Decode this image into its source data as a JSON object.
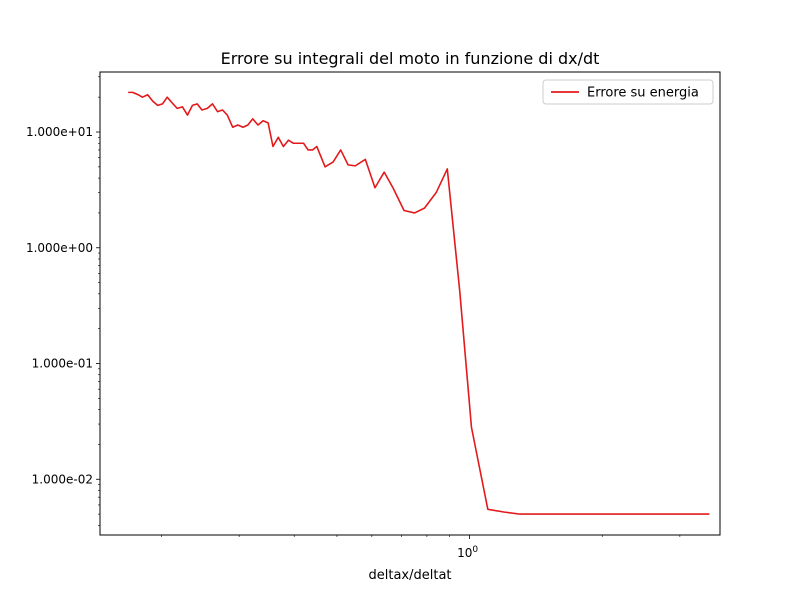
{
  "chart_data": {
    "type": "line",
    "title": "Errore su integrali del moto in funzione di dx/dt",
    "xlabel": "deltax/deltat",
    "ylabel": "",
    "xscale": "log",
    "yscale": "log",
    "xlim": [
      0.145,
      3.7
    ],
    "ylim": [
      0.0033,
      33
    ],
    "grid": false,
    "legend": {
      "location": "top-right",
      "entries": [
        "Errore su energia"
      ]
    },
    "xticks": [
      {
        "value": 1,
        "base": "10",
        "exp": "0",
        "label": "10^0"
      }
    ],
    "yticks": [
      {
        "value": 0.01,
        "label": "1.000e-02"
      },
      {
        "value": 0.1,
        "label": "1.000e-01"
      },
      {
        "value": 1,
        "label": "1.000e+00"
      },
      {
        "value": 10,
        "label": "1.000e+01"
      }
    ],
    "series": [
      {
        "name": "Errore su energia",
        "color": "#e31a1c",
        "x": [
          0.168,
          0.172,
          0.177,
          0.181,
          0.186,
          0.191,
          0.196,
          0.201,
          0.206,
          0.211,
          0.217,
          0.223,
          0.229,
          0.235,
          0.241,
          0.247,
          0.254,
          0.261,
          0.268,
          0.275,
          0.282,
          0.29,
          0.298,
          0.306,
          0.314,
          0.322,
          0.331,
          0.34,
          0.349,
          0.358,
          0.368,
          0.378,
          0.388,
          0.398,
          0.409,
          0.42,
          0.43,
          0.44,
          0.45,
          0.47,
          0.49,
          0.51,
          0.53,
          0.55,
          0.58,
          0.61,
          0.64,
          0.67,
          0.71,
          0.75,
          0.79,
          0.84,
          0.89,
          0.95,
          1.01,
          1.1,
          1.2,
          1.3,
          1.42,
          1.55,
          1.69,
          1.84,
          2.0,
          2.2,
          2.4,
          2.65,
          2.9,
          3.2,
          3.5
        ],
        "values": [
          22,
          22,
          21,
          20,
          21,
          18.5,
          17,
          17.5,
          20,
          18,
          16,
          16.5,
          14,
          17,
          17.5,
          15.5,
          16,
          17.5,
          15,
          15.5,
          14,
          11,
          11.5,
          11,
          11.5,
          13,
          11.5,
          12.5,
          12,
          7.5,
          9,
          7.5,
          8.5,
          8,
          8,
          8,
          7,
          7,
          7.5,
          5,
          5.5,
          7,
          5.2,
          5.1,
          5.8,
          3.3,
          4.5,
          3.3,
          2.1,
          2.0,
          2.2,
          3.0,
          4.8,
          0.42,
          0.028,
          0.0055,
          0.0052,
          0.005,
          0.005,
          0.005,
          0.005,
          0.005,
          0.005,
          0.005,
          0.005,
          0.005,
          0.005,
          0.005,
          0.005
        ]
      }
    ]
  }
}
